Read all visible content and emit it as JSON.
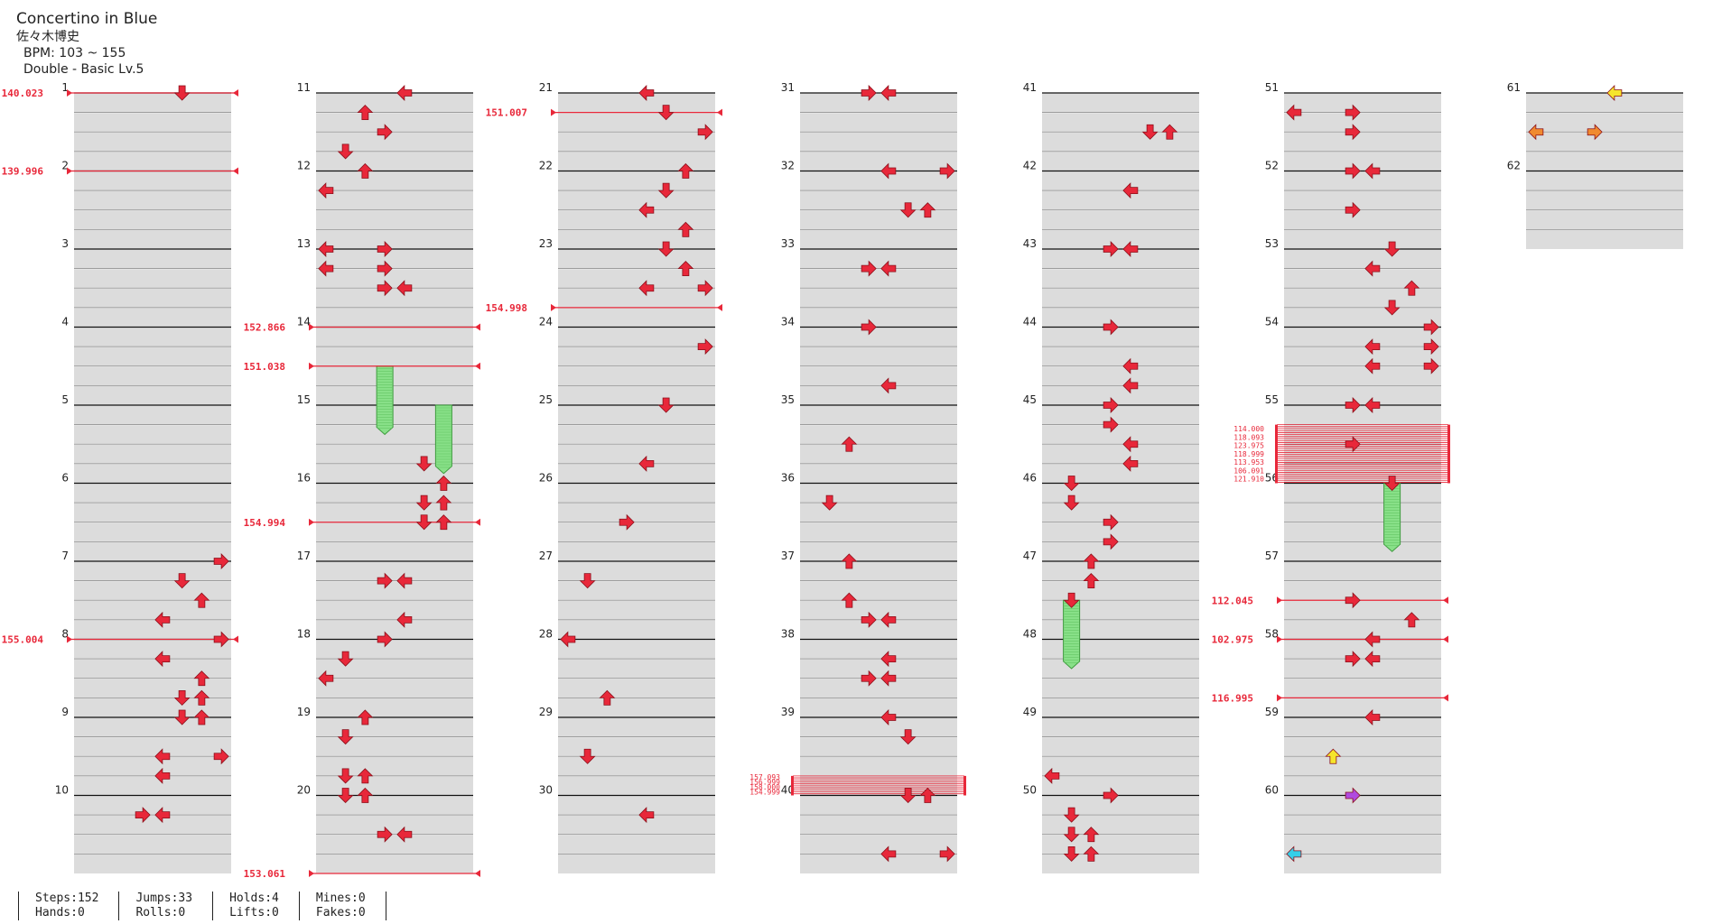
{
  "song": {
    "title": "Concertino in Blue",
    "artist": "佐々木博史",
    "bpm_range": "BPM: 103 ~ 155",
    "difficulty": "Double - Basic Lv.5"
  },
  "stats": {
    "steps": "Steps:152",
    "hands": "Hands:0",
    "jumps": "Jumps:33",
    "rolls": "Rolls:0",
    "holds": "Holds:4",
    "lifts": "Lifts:0",
    "mines": "Mines:0",
    "fakes": "Fakes:0"
  },
  "colors": {
    "note": "#e8283a",
    "hold": "#88e088",
    "quarter": "#f5e52b",
    "eighth": "#f08a30",
    "sixth": "#b04adf",
    "twelfth": "#35cfe8"
  },
  "chart_data": {
    "type": "step-chart",
    "measure_count": 62,
    "columns": 7,
    "measures_per_column": 10,
    "bpm_changes": [
      {
        "measure": 1,
        "beat": 0,
        "label": "140.023"
      },
      {
        "measure": 2,
        "beat": 0,
        "label": "139.996"
      },
      {
        "measure": 8,
        "beat": 0,
        "label": "155.004"
      },
      {
        "measure": 14,
        "beat": 0,
        "label": "152.866"
      },
      {
        "measure": 14,
        "beat": 2,
        "label": "151.038"
      },
      {
        "measure": 16,
        "beat": 2,
        "label": "154.994"
      },
      {
        "measure": 20,
        "beat": 4,
        "label": "153.061"
      },
      {
        "measure": 21,
        "beat": 1,
        "label": "151.007"
      },
      {
        "measure": 23,
        "beat": 3,
        "label": "154.998"
      },
      {
        "measure": 57,
        "beat": 2,
        "label": "112.045"
      },
      {
        "measure": 58,
        "beat": 0,
        "label": "102.975"
      },
      {
        "measure": 58,
        "beat": 3,
        "label": "116.995"
      }
    ],
    "stop_blocks": [
      {
        "measure": 39,
        "beat": 3,
        "beats": 1,
        "labels": [
          "157.093",
          "156.999",
          "158.000",
          "154.999"
        ]
      },
      {
        "measure": 55,
        "beat": 1,
        "beats": 3,
        "labels": [
          "114.000",
          "118.093",
          "123.975",
          "118.999",
          "113.953",
          "106.091",
          "121.910"
        ]
      }
    ],
    "holds": [
      {
        "measure": 14,
        "beat": 2,
        "beats": 3.5,
        "lane": 3
      },
      {
        "measure": 15,
        "beat": 0,
        "beats": 3.5,
        "lane": 6
      },
      {
        "measure": 56,
        "beat": 0,
        "beats": 3.5,
        "lane": 5
      },
      {
        "measure": 47,
        "beat": 2,
        "beats": 3.5,
        "lane": 1
      }
    ],
    "notes": [
      [
        1,
        0,
        5,
        "quarter"
      ],
      [
        11,
        0,
        4,
        "quarter"
      ],
      [
        11,
        1,
        2,
        "quarter"
      ],
      [
        11,
        2,
        3,
        "quarter"
      ],
      [
        11,
        3,
        1,
        "quarter"
      ],
      [
        12,
        0,
        2,
        "quarter"
      ],
      [
        12,
        1,
        0,
        "quarter"
      ],
      [
        13,
        0,
        0,
        "quarter"
      ],
      [
        13,
        0,
        3,
        "quarter"
      ],
      [
        13,
        1,
        0,
        "quarter"
      ],
      [
        13,
        1,
        3,
        "quarter"
      ],
      [
        13,
        2,
        3,
        "quarter"
      ],
      [
        13,
        2,
        4,
        "quarter"
      ],
      [
        15,
        3,
        5,
        "quarter"
      ],
      [
        16,
        0,
        6,
        "quarter"
      ],
      [
        16,
        1,
        5,
        "quarter"
      ],
      [
        16,
        1,
        6,
        "quarter"
      ],
      [
        16,
        2,
        5,
        "quarter"
      ],
      [
        16,
        2,
        6,
        "quarter"
      ],
      [
        17,
        1,
        3,
        "quarter"
      ],
      [
        17,
        1,
        4,
        "quarter"
      ],
      [
        17,
        3,
        4,
        "quarter"
      ],
      [
        18,
        0,
        3,
        "quarter"
      ],
      [
        18,
        1,
        1,
        "quarter"
      ],
      [
        18,
        2,
        0,
        "quarter"
      ],
      [
        19,
        0,
        2,
        "quarter"
      ],
      [
        19,
        1,
        1,
        "quarter"
      ],
      [
        19,
        3,
        1,
        "quarter"
      ],
      [
        19,
        3,
        2,
        "quarter"
      ],
      [
        20,
        0,
        1,
        "quarter"
      ],
      [
        20,
        0,
        2,
        "quarter"
      ],
      [
        20,
        2,
        3,
        "quarter"
      ],
      [
        20,
        2,
        4,
        "quarter"
      ],
      [
        7,
        0,
        7,
        "quarter"
      ],
      [
        7,
        1,
        5,
        "quarter"
      ],
      [
        7,
        2,
        6,
        "quarter"
      ],
      [
        7,
        3,
        4,
        "quarter"
      ],
      [
        8,
        0,
        7,
        "quarter"
      ],
      [
        8,
        1,
        4,
        "quarter"
      ],
      [
        8,
        2,
        6,
        "quarter"
      ],
      [
        8,
        3,
        5,
        "quarter"
      ],
      [
        8,
        3,
        6,
        "quarter"
      ],
      [
        9,
        0,
        5,
        "quarter"
      ],
      [
        9,
        0,
        6,
        "quarter"
      ],
      [
        9,
        2,
        4,
        "quarter"
      ],
      [
        9,
        2,
        7,
        "quarter"
      ],
      [
        9,
        3,
        4,
        "quarter"
      ],
      [
        10,
        1,
        3,
        "quarter"
      ],
      [
        10,
        1,
        4,
        "quarter"
      ],
      [
        21,
        0,
        4,
        "quarter"
      ],
      [
        21,
        1,
        5,
        "quarter"
      ],
      [
        21,
        2,
        7,
        "quarter"
      ],
      [
        22,
        0,
        6,
        "quarter"
      ],
      [
        22,
        1,
        5,
        "quarter"
      ],
      [
        22,
        2,
        4,
        "quarter"
      ],
      [
        22,
        3,
        6,
        "quarter"
      ],
      [
        23,
        0,
        5,
        "quarter"
      ],
      [
        23,
        1,
        6,
        "quarter"
      ],
      [
        23,
        2,
        4,
        "quarter"
      ],
      [
        23,
        2,
        7,
        "quarter"
      ],
      [
        24,
        1,
        7,
        "quarter"
      ],
      [
        25,
        0,
        5,
        "quarter"
      ],
      [
        25,
        3,
        4,
        "quarter"
      ],
      [
        26,
        2,
        3,
        "quarter"
      ],
      [
        27,
        1,
        1,
        "quarter"
      ],
      [
        28,
        0,
        0,
        "quarter"
      ],
      [
        28,
        3,
        2,
        "quarter"
      ],
      [
        29,
        2,
        1,
        "quarter"
      ],
      [
        30,
        1,
        4,
        "quarter"
      ],
      [
        31,
        0,
        3,
        "quarter"
      ],
      [
        31,
        0,
        4,
        "quarter"
      ],
      [
        32,
        0,
        4,
        "quarter"
      ],
      [
        32,
        0,
        7,
        "quarter"
      ],
      [
        32,
        2,
        5,
        "quarter"
      ],
      [
        32,
        2,
        6,
        "quarter"
      ],
      [
        33,
        1,
        3,
        "quarter"
      ],
      [
        33,
        1,
        4,
        "quarter"
      ],
      [
        34,
        0,
        3,
        "quarter"
      ],
      [
        34,
        3,
        4,
        "quarter"
      ],
      [
        35,
        2,
        2,
        "quarter"
      ],
      [
        36,
        1,
        1,
        "quarter"
      ],
      [
        37,
        0,
        2,
        "quarter"
      ],
      [
        37,
        2,
        2,
        "quarter"
      ],
      [
        37,
        3,
        3,
        "quarter"
      ],
      [
        37,
        3,
        4,
        "quarter"
      ],
      [
        38,
        1,
        4,
        "quarter"
      ],
      [
        38,
        2,
        3,
        "quarter"
      ],
      [
        38,
        2,
        4,
        "quarter"
      ],
      [
        39,
        0,
        4,
        "quarter"
      ],
      [
        39,
        1,
        5,
        "quarter"
      ],
      [
        40,
        0,
        5,
        "quarter"
      ],
      [
        40,
        0,
        6,
        "quarter"
      ],
      [
        40,
        3,
        4,
        "quarter"
      ],
      [
        40,
        3,
        7,
        "quarter"
      ],
      [
        41,
        2,
        5,
        "quarter"
      ],
      [
        41,
        2,
        6,
        "quarter"
      ],
      [
        42,
        1,
        4,
        "quarter"
      ],
      [
        43,
        0,
        3,
        "quarter"
      ],
      [
        43,
        0,
        4,
        "quarter"
      ],
      [
        44,
        0,
        3,
        "quarter"
      ],
      [
        44,
        2,
        4,
        "quarter"
      ],
      [
        44,
        3,
        4,
        "quarter"
      ],
      [
        45,
        0,
        3,
        "quarter"
      ],
      [
        45,
        1,
        3,
        "quarter"
      ],
      [
        45,
        2,
        4,
        "quarter"
      ],
      [
        45,
        3,
        4,
        "quarter"
      ],
      [
        46,
        0,
        1,
        "quarter"
      ],
      [
        46,
        1,
        1,
        "quarter"
      ],
      [
        46,
        2,
        3,
        "quarter"
      ],
      [
        46,
        3,
        3,
        "quarter"
      ],
      [
        47,
        0,
        2,
        "quarter"
      ],
      [
        47,
        1,
        2,
        "quarter"
      ],
      [
        47,
        2,
        1,
        "quarter"
      ],
      [
        49,
        3,
        0,
        "quarter"
      ],
      [
        50,
        0,
        3,
        "quarter"
      ],
      [
        50,
        1,
        1,
        "quarter"
      ],
      [
        50,
        2,
        1,
        "quarter"
      ],
      [
        50,
        2,
        2,
        "quarter"
      ],
      [
        50,
        3,
        1,
        "quarter"
      ],
      [
        50,
        3,
        2,
        "quarter"
      ],
      [
        51,
        1,
        0,
        "quarter"
      ],
      [
        51,
        1,
        3,
        "quarter"
      ],
      [
        51,
        2,
        3,
        "quarter"
      ],
      [
        52,
        0,
        3,
        "quarter"
      ],
      [
        52,
        0,
        4,
        "quarter"
      ],
      [
        52,
        2,
        3,
        "quarter"
      ],
      [
        53,
        0,
        5,
        "quarter"
      ],
      [
        53,
        1,
        4,
        "quarter"
      ],
      [
        53,
        2,
        6,
        "quarter"
      ],
      [
        53,
        3,
        5,
        "quarter"
      ],
      [
        54,
        0,
        7,
        "quarter"
      ],
      [
        54,
        1,
        4,
        "quarter"
      ],
      [
        54,
        1,
        7,
        "quarter"
      ],
      [
        54,
        2,
        4,
        "quarter"
      ],
      [
        54,
        2,
        7,
        "quarter"
      ],
      [
        55,
        0,
        3,
        "quarter"
      ],
      [
        55,
        0,
        4,
        "quarter"
      ],
      [
        55,
        2,
        3,
        "quarter"
      ],
      [
        56,
        0,
        5,
        "quarter"
      ],
      [
        57,
        2,
        3,
        "quarter"
      ],
      [
        57,
        3,
        6,
        "quarter"
      ],
      [
        58,
        0,
        4,
        "quarter"
      ],
      [
        58,
        1,
        3,
        "quarter"
      ],
      [
        58,
        1,
        4,
        "quarter"
      ],
      [
        59,
        0,
        4,
        "quarter"
      ],
      [
        59,
        2,
        2,
        "yellow"
      ],
      [
        60,
        0,
        3,
        "purple"
      ],
      [
        60,
        3,
        0,
        "cyan"
      ],
      [
        61,
        0,
        4,
        "yellow"
      ],
      [
        61,
        2,
        0,
        "orange"
      ],
      [
        61,
        2,
        3,
        "orange"
      ]
    ]
  }
}
